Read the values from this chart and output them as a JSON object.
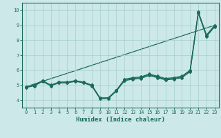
{
  "title": "",
  "xlabel": "Humidex (Indice chaleur)",
  "ylabel": "",
  "xlim": [
    -0.5,
    23.5
  ],
  "ylim": [
    3.5,
    10.5
  ],
  "xticks": [
    0,
    1,
    2,
    3,
    4,
    5,
    6,
    7,
    8,
    9,
    10,
    11,
    12,
    13,
    14,
    15,
    16,
    17,
    18,
    19,
    20,
    21,
    22,
    23
  ],
  "yticks": [
    4,
    5,
    6,
    7,
    8,
    9,
    10
  ],
  "background_color": "#cce8e8",
  "grid_color": "#a8cece",
  "line_color": "#1a6b5a",
  "lines": [
    [
      4.9,
      5.0,
      5.3,
      5.0,
      5.2,
      5.2,
      5.3,
      5.2,
      5.0,
      4.15,
      4.15,
      4.65,
      5.4,
      5.5,
      5.55,
      5.75,
      5.6,
      5.45,
      5.5,
      5.6,
      6.0,
      9.9,
      8.35,
      9.0
    ],
    [
      4.9,
      5.0,
      5.3,
      5.0,
      5.2,
      5.2,
      5.3,
      5.2,
      5.0,
      4.15,
      4.15,
      4.65,
      5.35,
      5.45,
      5.5,
      5.7,
      5.55,
      5.4,
      5.45,
      5.55,
      5.95,
      9.85,
      8.3,
      8.95
    ],
    [
      4.85,
      4.95,
      5.25,
      4.95,
      5.15,
      5.15,
      5.25,
      5.15,
      4.95,
      4.1,
      4.1,
      4.6,
      5.3,
      5.4,
      5.45,
      5.65,
      5.5,
      5.35,
      5.4,
      5.5,
      5.9,
      9.8,
      8.25,
      8.9
    ]
  ],
  "envelope_line": [
    [
      0,
      23
    ],
    [
      4.9,
      9.0
    ]
  ],
  "marker": "D",
  "marker_size": 2,
  "linewidth": 0.9
}
